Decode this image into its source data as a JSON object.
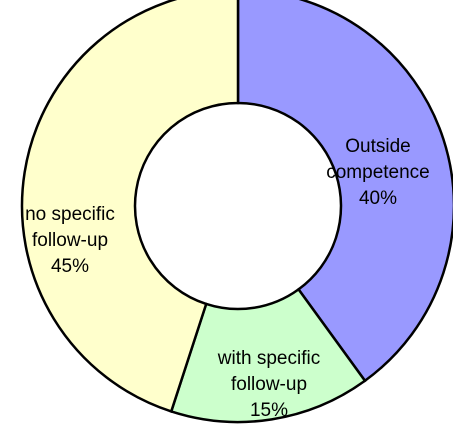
{
  "chart_data": {
    "type": "pie",
    "variant": "donut",
    "title": "",
    "slices": [
      {
        "label_lines": [
          "Outside",
          "competence"
        ],
        "percent_label": "40%",
        "value": 40,
        "color": "#9999ff"
      },
      {
        "label_lines": [
          "with specific",
          "follow-up"
        ],
        "percent_label": "15%",
        "value": 15,
        "color": "#ccffcc"
      },
      {
        "label_lines": [
          "no specific",
          "follow-up"
        ],
        "percent_label": "45%",
        "value": 45,
        "color": "#ffffcc"
      }
    ],
    "start_angle_deg": 0,
    "direction": "clockwise"
  }
}
